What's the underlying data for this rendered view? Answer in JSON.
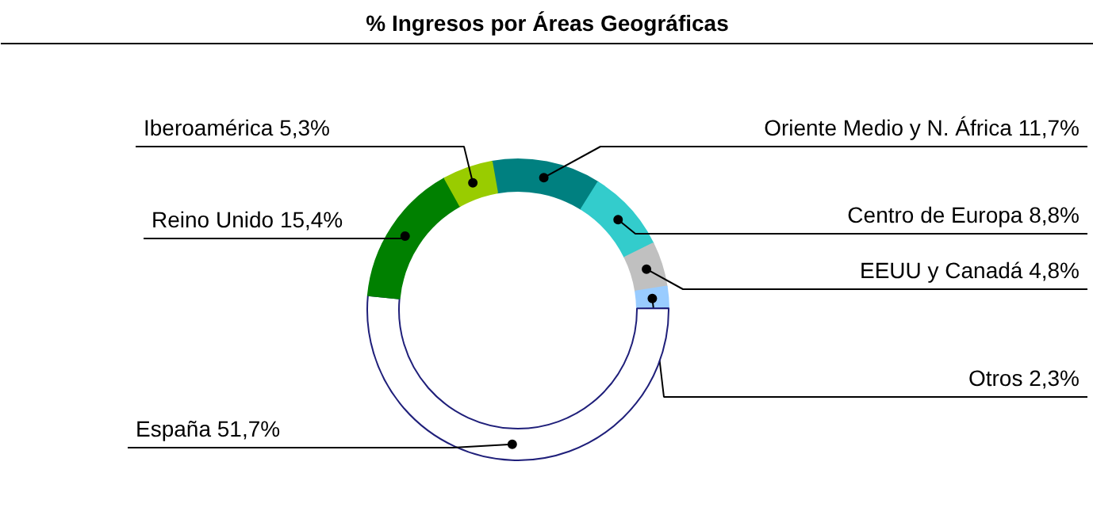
{
  "chart_data": {
    "type": "donut",
    "title": "% Ingresos por Áreas Geográficas",
    "categories": [
      "Oriente Medio y N. África",
      "Centro de Europa",
      "EEUU y Canadá",
      "Otros",
      "España",
      "Reino Unido",
      "Iberoamérica"
    ],
    "values": [
      11.7,
      8.8,
      4.8,
      2.3,
      51.7,
      15.4,
      5.3
    ],
    "value_labels": [
      "11,7%",
      "8,8%",
      "4,8%",
      "2,3%",
      "51,7%",
      "15,4%",
      "5,3%"
    ],
    "colors": [
      "#008080",
      "#33cccc",
      "#c0c0c0",
      "#99ccff",
      "#ffffff",
      "#008000",
      "#99cc00"
    ]
  }
}
